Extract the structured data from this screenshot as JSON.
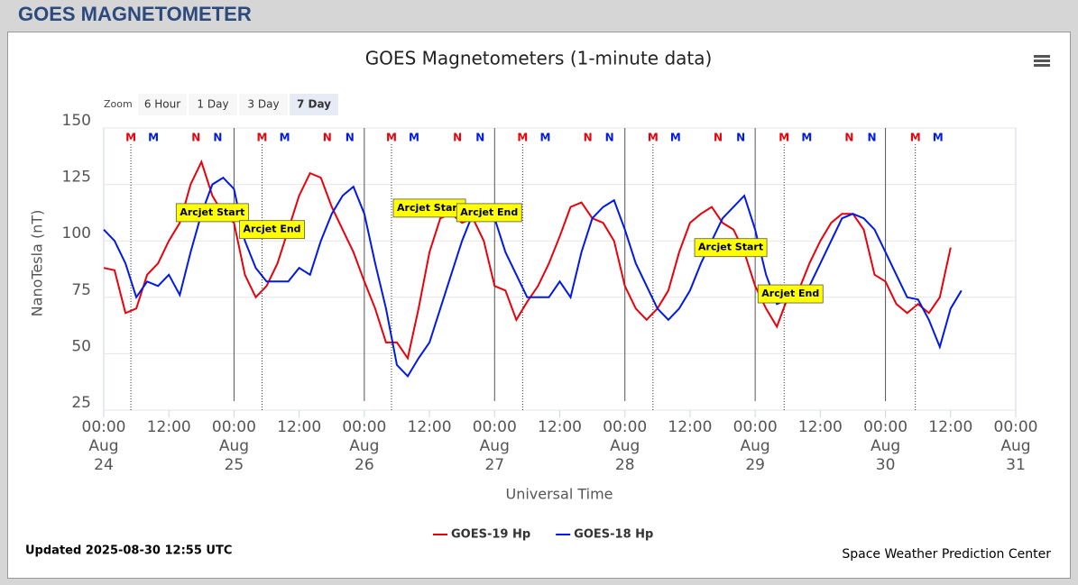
{
  "header": {
    "title": "GOES MAGNETOMETER"
  },
  "zoom": {
    "label": "Zoom",
    "buttons": [
      "6 Hour",
      "1 Day",
      "3 Day",
      "7 Day"
    ],
    "selected": 3
  },
  "chart_data": {
    "type": "line",
    "title": "GOES Magnetometers (1-minute data)",
    "x_label": "Universal Time",
    "y_label": "NanoTesla (nT)",
    "updated": "Updated 2025-08-30 12:55 UTC",
    "credits": "Space Weather Prediction Center",
    "xlim": [
      "Aug 24 00:00",
      "Aug 31 00:00"
    ],
    "xticks": [
      {
        "value": "Aug 24 00:00",
        "label": "00:00 Aug 24"
      },
      {
        "value": "Aug 24 12:00",
        "label": "12:00"
      },
      {
        "value": "Aug 25 00:00",
        "label": "00:00 Aug 25"
      },
      {
        "value": "Aug 25 12:00",
        "label": "12:00"
      },
      {
        "value": "Aug 26 00:00",
        "label": "00:00 Aug 26"
      },
      {
        "value": "Aug 26 12:00",
        "label": "12:00"
      },
      {
        "value": "Aug 27 00:00",
        "label": "00:00 Aug 27"
      },
      {
        "value": "Aug 27 12:00",
        "label": "12:00"
      },
      {
        "value": "Aug 28 00:00",
        "label": "00:00 Aug 28"
      },
      {
        "value": "Aug 28 12:00",
        "label": "12:00"
      },
      {
        "value": "Aug 29 00:00",
        "label": "00:00 Aug 29"
      },
      {
        "value": "Aug 29 12:00",
        "label": "12:00"
      },
      {
        "value": "Aug 30 00:00",
        "label": "00:00 Aug 30"
      },
      {
        "value": "Aug 30 12:00",
        "label": "12:00"
      },
      {
        "value": "Aug 31 00:00",
        "label": "00:00 Aug 31"
      }
    ],
    "ylim": [
      25,
      150
    ],
    "yticks": [
      25,
      50,
      75,
      100,
      125,
      150
    ],
    "grid": true,
    "midnight_lines": true,
    "x": [
      "Aug 24 00:00",
      "Aug 24 02:00",
      "Aug 24 04:00",
      "Aug 24 06:00",
      "Aug 24 08:00",
      "Aug 24 10:00",
      "Aug 24 12:00",
      "Aug 24 14:00",
      "Aug 24 16:00",
      "Aug 24 18:00",
      "Aug 24 20:00",
      "Aug 24 22:00",
      "Aug 25 00:00",
      "Aug 25 02:00",
      "Aug 25 04:00",
      "Aug 25 06:00",
      "Aug 25 08:00",
      "Aug 25 10:00",
      "Aug 25 12:00",
      "Aug 25 14:00",
      "Aug 25 16:00",
      "Aug 25 18:00",
      "Aug 25 20:00",
      "Aug 25 22:00",
      "Aug 26 00:00",
      "Aug 26 02:00",
      "Aug 26 04:00",
      "Aug 26 06:00",
      "Aug 26 08:00",
      "Aug 26 10:00",
      "Aug 26 12:00",
      "Aug 26 14:00",
      "Aug 26 16:00",
      "Aug 26 18:00",
      "Aug 26 20:00",
      "Aug 26 22:00",
      "Aug 27 00:00",
      "Aug 27 02:00",
      "Aug 27 04:00",
      "Aug 27 06:00",
      "Aug 27 08:00",
      "Aug 27 10:00",
      "Aug 27 12:00",
      "Aug 27 14:00",
      "Aug 27 16:00",
      "Aug 27 18:00",
      "Aug 27 20:00",
      "Aug 27 22:00",
      "Aug 28 00:00",
      "Aug 28 02:00",
      "Aug 28 04:00",
      "Aug 28 06:00",
      "Aug 28 08:00",
      "Aug 28 10:00",
      "Aug 28 12:00",
      "Aug 28 14:00",
      "Aug 28 16:00",
      "Aug 28 18:00",
      "Aug 28 20:00",
      "Aug 28 22:00",
      "Aug 29 00:00",
      "Aug 29 02:00",
      "Aug 29 04:00",
      "Aug 29 06:00",
      "Aug 29 08:00",
      "Aug 29 10:00",
      "Aug 29 12:00",
      "Aug 29 14:00",
      "Aug 29 16:00",
      "Aug 29 18:00",
      "Aug 29 20:00",
      "Aug 29 22:00",
      "Aug 30 00:00",
      "Aug 30 02:00",
      "Aug 30 04:00",
      "Aug 30 06:00",
      "Aug 30 08:00",
      "Aug 30 10:00",
      "Aug 30 12:00",
      "Aug 30 14:00"
    ],
    "series": [
      {
        "name": "GOES-19 Hp",
        "color": "#e8000b",
        "values": [
          88,
          87,
          68,
          70,
          85,
          90,
          100,
          108,
          125,
          135,
          120,
          112,
          108,
          85,
          75,
          80,
          90,
          105,
          120,
          130,
          128,
          115,
          105,
          95,
          82,
          70,
          55,
          55,
          48,
          70,
          95,
          110,
          112,
          108,
          110,
          100,
          80,
          78,
          65,
          73,
          80,
          90,
          102,
          115,
          117,
          110,
          108,
          100,
          80,
          70,
          65,
          70,
          78,
          95,
          108,
          112,
          115,
          108,
          105,
          95,
          80,
          70,
          62,
          75,
          78,
          90,
          100,
          108,
          112,
          112,
          105,
          85,
          82,
          72,
          68,
          72,
          68,
          75,
          97,
          null
        ]
      },
      {
        "name": "GOES-18 Hp",
        "color": "#0019e8",
        "values": [
          105,
          100,
          90,
          75,
          82,
          80,
          85,
          76,
          95,
          112,
          125,
          128,
          123,
          100,
          88,
          82,
          82,
          82,
          88,
          85,
          100,
          112,
          120,
          124,
          112,
          90,
          70,
          45,
          40,
          48,
          55,
          70,
          85,
          100,
          112,
          112,
          110,
          95,
          85,
          75,
          75,
          75,
          82,
          75,
          95,
          110,
          115,
          118,
          105,
          90,
          80,
          70,
          65,
          70,
          78,
          90,
          100,
          110,
          115,
          120,
          105,
          85,
          72,
          74,
          75,
          80,
          90,
          100,
          110,
          112,
          110,
          105,
          95,
          85,
          75,
          74,
          65,
          53,
          70,
          78
        ]
      }
    ],
    "markers": [
      {
        "label": "M",
        "x": "Aug 24 05:00",
        "color": "#e8000b",
        "dotted": true
      },
      {
        "label": "M",
        "x": "Aug 24 09:10",
        "color": "#0019e8"
      },
      {
        "label": "N",
        "x": "Aug 24 17:00",
        "color": "#e8000b"
      },
      {
        "label": "N",
        "x": "Aug 24 21:00",
        "color": "#0019e8"
      },
      {
        "label": "M",
        "x": "Aug 25 05:10",
        "color": "#e8000b",
        "dotted": true
      },
      {
        "label": "M",
        "x": "Aug 25 09:20",
        "color": "#0019e8"
      },
      {
        "label": "N",
        "x": "Aug 25 17:10",
        "color": "#e8000b"
      },
      {
        "label": "N",
        "x": "Aug 25 21:20",
        "color": "#0019e8"
      },
      {
        "label": "M",
        "x": "Aug 26 05:00",
        "color": "#e8000b",
        "dotted": true
      },
      {
        "label": "M",
        "x": "Aug 26 09:10",
        "color": "#0019e8"
      },
      {
        "label": "N",
        "x": "Aug 26 17:10",
        "color": "#e8000b"
      },
      {
        "label": "N",
        "x": "Aug 26 21:20",
        "color": "#0019e8"
      },
      {
        "label": "M",
        "x": "Aug 27 05:10",
        "color": "#e8000b",
        "dotted": true
      },
      {
        "label": "M",
        "x": "Aug 27 09:20",
        "color": "#0019e8"
      },
      {
        "label": "N",
        "x": "Aug 27 17:10",
        "color": "#e8000b"
      },
      {
        "label": "N",
        "x": "Aug 27 21:10",
        "color": "#0019e8"
      },
      {
        "label": "M",
        "x": "Aug 28 05:10",
        "color": "#e8000b",
        "dotted": true
      },
      {
        "label": "M",
        "x": "Aug 28 09:20",
        "color": "#0019e8"
      },
      {
        "label": "N",
        "x": "Aug 28 17:10",
        "color": "#e8000b"
      },
      {
        "label": "N",
        "x": "Aug 28 21:20",
        "color": "#0019e8"
      },
      {
        "label": "M",
        "x": "Aug 29 05:20",
        "color": "#e8000b",
        "dotted": true
      },
      {
        "label": "M",
        "x": "Aug 29 09:30",
        "color": "#0019e8"
      },
      {
        "label": "N",
        "x": "Aug 29 17:20",
        "color": "#e8000b"
      },
      {
        "label": "N",
        "x": "Aug 29 21:30",
        "color": "#0019e8"
      },
      {
        "label": "M",
        "x": "Aug 30 05:30",
        "color": "#e8000b",
        "dotted": true
      },
      {
        "label": "M",
        "x": "Aug 30 09:40",
        "color": "#0019e8"
      }
    ],
    "annotations": [
      {
        "text": "Arcjet Start",
        "x": "Aug 24 20:00",
        "y": 112.5
      },
      {
        "text": "Arcjet End",
        "x": "Aug 25 07:00",
        "y": 105
      },
      {
        "text": "Arcjet Start",
        "x": "Aug 26 12:00",
        "y": 114.5
      },
      {
        "text": "Arcjet End",
        "x": "Aug 26 23:00",
        "y": 112.5
      },
      {
        "text": "Arcjet Start",
        "x": "Aug 28 19:30",
        "y": 97
      },
      {
        "text": "Arcjet End",
        "x": "Aug 29 06:30",
        "y": 76.5
      }
    ]
  }
}
